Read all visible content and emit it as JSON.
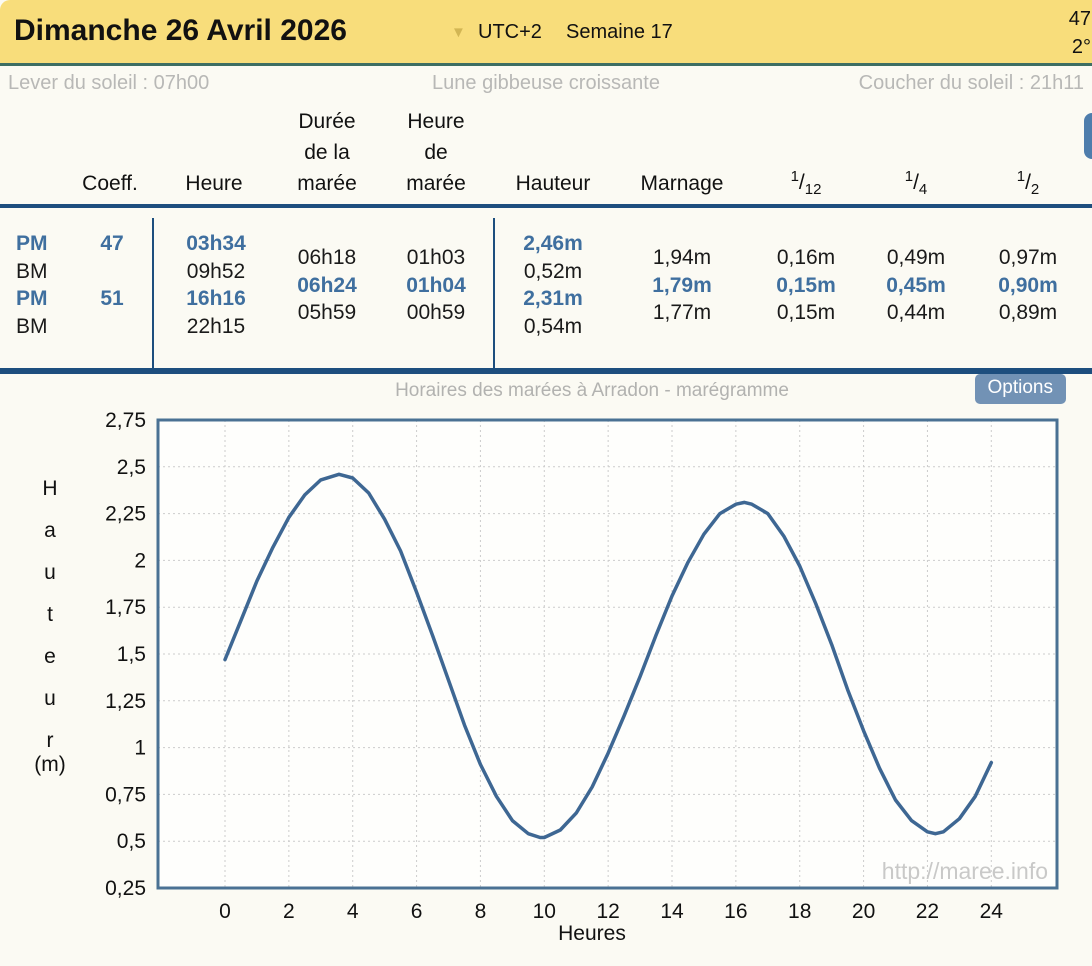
{
  "header": {
    "date_title": "Dimanche 26 Avril 2026",
    "caret_icon": "▼",
    "utc": "UTC+2",
    "week": "Semaine 17",
    "corner_coeff": "47",
    "corner_temp": "2°"
  },
  "sunbar": {
    "sunrise": "Lever du soleil : 07h00",
    "moon": "Lune gibbeuse croissante",
    "sunset": "Coucher du soleil : 21h11"
  },
  "tide_table": {
    "headers": {
      "coeff": "Coeff.",
      "heure": "Heure",
      "duree_l1": "Durée",
      "duree_l2": "de la",
      "duree_l3": "marée",
      "heure_maree_l1": "Heure",
      "heure_maree_l2": "de",
      "heure_maree_l3": "marée",
      "hauteur": "Hauteur",
      "marnage": "Marnage",
      "f12_num": "1",
      "f12_den": "12",
      "f4_num": "1",
      "f4_den": "4",
      "f2_num": "1",
      "f2_den": "2"
    },
    "rows": [
      {
        "type": "PM",
        "coeff": "47",
        "heure": "03h34",
        "hauteur": "2,46m",
        "highlight": true
      },
      {
        "type": "BM",
        "coeff": "",
        "heure": "09h52",
        "hauteur": "0,52m",
        "highlight": false
      },
      {
        "type": "PM",
        "coeff": "51",
        "heure": "16h16",
        "hauteur": "2,31m",
        "highlight": true
      },
      {
        "type": "BM",
        "coeff": "",
        "heure": "22h15",
        "hauteur": "0,54m",
        "highlight": false
      }
    ],
    "between": [
      {
        "duree": "06h18",
        "heure_maree": "01h03",
        "marnage": "1,94m",
        "d12": "0,16m",
        "d4": "0,49m",
        "d2": "0,97m",
        "highlight": false
      },
      {
        "duree": "06h24",
        "heure_maree": "01h04",
        "marnage": "1,79m",
        "d12": "0,15m",
        "d4": "0,45m",
        "d2": "0,90m",
        "highlight": true
      },
      {
        "duree": "05h59",
        "heure_maree": "00h59",
        "marnage": "1,77m",
        "d12": "0,15m",
        "d4": "0,44m",
        "d2": "0,89m",
        "highlight": false
      }
    ]
  },
  "chart": {
    "title": "Horaires des marées à Arradon - marégramme",
    "options_label": "Options",
    "watermark": "http://maree.info",
    "ylabel": "Hauteur",
    "yunit": "(m)",
    "xlabel": "Heures"
  },
  "chart_data": {
    "type": "line",
    "title": "Horaires des marées à Arradon - marégramme",
    "xlabel": "Heures",
    "ylabel": "Hauteur (m)",
    "xlim": [
      0,
      24
    ],
    "ylim": [
      0.25,
      2.75
    ],
    "grid": true,
    "xticks": [
      0,
      2,
      4,
      6,
      8,
      10,
      12,
      14,
      16,
      18,
      20,
      22,
      24
    ],
    "yticks": [
      2.75,
      2.5,
      2.25,
      2,
      1.75,
      1.5,
      1.25,
      1,
      0.75,
      0.5,
      0.25
    ],
    "ytick_labels": [
      "2,75",
      "2,5",
      "2,25",
      "2",
      "1,75",
      "1,5",
      "1,25",
      "1",
      "0,75",
      "0,5",
      "0,25"
    ],
    "line_color": "#3e6793",
    "tide_extremes": [
      {
        "type": "PM",
        "time": "03h34",
        "height_m": 2.46
      },
      {
        "type": "BM",
        "time": "09h52",
        "height_m": 0.52
      },
      {
        "type": "PM",
        "time": "16h16",
        "height_m": 2.31
      },
      {
        "type": "BM",
        "time": "22h15",
        "height_m": 0.54
      }
    ],
    "curve": {
      "x": [
        0,
        0.5,
        1,
        1.5,
        2,
        2.5,
        3,
        3.57,
        4,
        4.5,
        5,
        5.5,
        6,
        6.5,
        7,
        7.5,
        8,
        8.5,
        9,
        9.5,
        9.87,
        10,
        10.5,
        11,
        11.5,
        12,
        12.5,
        13,
        13.5,
        14,
        14.5,
        15,
        15.5,
        16,
        16.27,
        16.5,
        17,
        17.5,
        18,
        18.5,
        19,
        19.5,
        20,
        20.5,
        21,
        21.5,
        22,
        22.25,
        22.5,
        23,
        23.5,
        24
      ],
      "y": [
        1.47,
        1.68,
        1.89,
        2.07,
        2.23,
        2.35,
        2.43,
        2.46,
        2.44,
        2.36,
        2.22,
        2.05,
        1.83,
        1.6,
        1.36,
        1.12,
        0.91,
        0.74,
        0.61,
        0.54,
        0.52,
        0.52,
        0.56,
        0.65,
        0.79,
        0.97,
        1.17,
        1.38,
        1.6,
        1.81,
        1.99,
        2.14,
        2.25,
        2.3,
        2.31,
        2.3,
        2.25,
        2.13,
        1.97,
        1.77,
        1.55,
        1.31,
        1.09,
        0.89,
        0.72,
        0.61,
        0.55,
        0.54,
        0.55,
        0.62,
        0.74,
        0.92
      ]
    }
  }
}
